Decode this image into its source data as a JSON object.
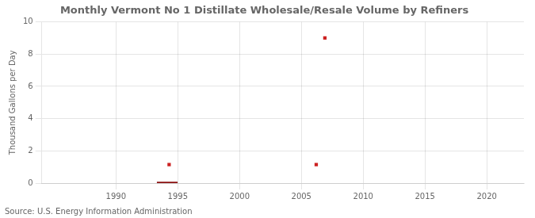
{
  "chart_data": {
    "type": "scatter",
    "title": "Monthly Vermont No 1 Distillate Wholesale/Resale Volume by Refiners",
    "ylabel": "Thousand Gallons per Day",
    "annotation": "Source: U.S. Energy Information Administration",
    "xlim": [
      1984,
      2023
    ],
    "ylim": [
      0,
      10
    ],
    "xticks": [
      1990,
      1995,
      2000,
      2005,
      2010,
      2015,
      2020
    ],
    "yticks": [
      0,
      2,
      4,
      6,
      8,
      10
    ],
    "grid": true,
    "series": [
      {
        "type": "scatter",
        "marker": "square",
        "color": "#cc2222",
        "x": [
          1994.3,
          2006.2,
          2006.9
        ],
        "values": [
          1.15,
          1.15,
          9.0
        ]
      },
      {
        "type": "bar",
        "color": "#8b1010",
        "x": [
          1993.3
        ],
        "x_end": [
          1995.0
        ],
        "values": [
          0.08
        ]
      }
    ]
  }
}
